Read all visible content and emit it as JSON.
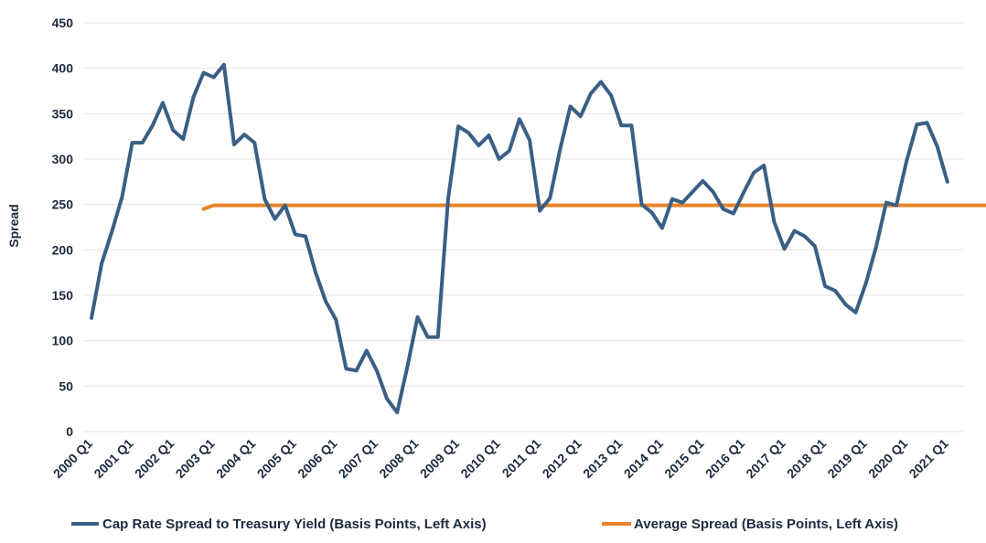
{
  "chart_data": {
    "type": "line",
    "ylabel": "Spread",
    "ylim": [
      0,
      450
    ],
    "yticks": [
      0,
      50,
      100,
      150,
      200,
      250,
      300,
      350,
      400,
      450
    ],
    "grid": true,
    "legend_position": "bottom",
    "x_labels": [
      "2000 Q1",
      "2001 Q1",
      "2002 Q1",
      "2003 Q1",
      "2004 Q1",
      "2005 Q1",
      "2006 Q1",
      "2007 Q1",
      "2008 Q1",
      "2009 Q1",
      "2010 Q1",
      "2011 Q1",
      "2012 Q1",
      "2013 Q1",
      "2014 Q1",
      "2015 Q1",
      "2016 Q1",
      "2017 Q1",
      "2018 Q1",
      "2019 Q1",
      "2020 Q1",
      "2021 Q1"
    ],
    "series": [
      {
        "name": "Cap Rate Spread to Treasury Yield (Basis Points, Left Axis)",
        "color": "#3a5f85",
        "values": [
          125,
          185,
          220,
          258,
          318,
          318,
          337,
          362,
          332,
          322,
          368,
          395,
          390,
          404,
          316,
          327,
          318,
          256,
          234,
          249,
          217,
          215,
          175,
          143,
          123,
          69,
          67,
          89,
          67,
          36,
          21,
          71,
          126,
          104,
          104,
          256,
          336,
          329,
          315,
          326,
          300,
          309,
          344,
          321,
          243,
          257,
          311,
          358,
          347,
          372,
          385,
          370,
          337,
          337,
          250,
          241,
          224,
          256,
          252,
          264,
          276,
          264,
          245,
          240,
          263,
          285,
          293,
          231,
          201,
          221,
          215,
          204,
          160,
          155,
          140,
          131,
          163,
          203,
          252,
          249,
          298,
          338,
          340,
          314,
          275
        ]
      },
      {
        "name": "Average Spread (Basis Points, Left Axis)",
        "color": "#e8832a",
        "values": [
          245,
          249,
          249,
          249,
          249,
          249,
          249,
          249,
          249,
          249,
          249,
          249,
          249,
          249,
          249,
          249,
          249,
          249,
          249,
          249,
          249,
          249,
          249,
          249,
          249,
          249,
          249,
          249,
          249,
          249,
          249,
          249,
          249,
          249,
          249,
          249,
          249,
          249,
          249,
          249,
          249,
          249,
          249,
          249,
          249,
          249,
          249,
          249,
          249,
          249,
          249,
          249,
          249,
          249,
          249,
          249,
          249,
          249,
          249,
          249,
          249,
          249,
          249,
          249,
          249,
          249,
          249,
          249,
          249,
          249,
          249,
          249,
          249,
          249,
          249,
          249,
          249,
          249,
          249,
          249,
          249,
          249,
          249,
          249,
          249,
          249
        ]
      }
    ]
  }
}
